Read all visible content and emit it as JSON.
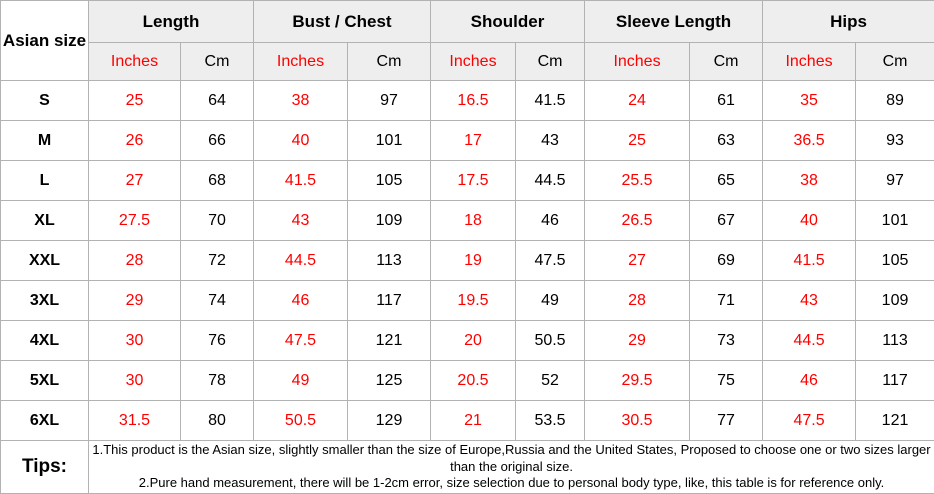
{
  "chart_data": {
    "type": "table",
    "corner_header": "Asian size",
    "column_groups": [
      "Length",
      "Bust / Chest",
      "Shoulder",
      "Sleeve Length",
      "Hips"
    ],
    "unit_columns": [
      "Inches",
      "Cm"
    ],
    "row_labels": [
      "S",
      "M",
      "L",
      "XL",
      "XXL",
      "3XL",
      "4XL",
      "5XL",
      "6XL"
    ],
    "rows": [
      [
        25,
        64,
        38,
        97,
        16.5,
        41.5,
        24,
        61,
        35,
        89
      ],
      [
        26,
        66,
        40,
        101,
        17,
        43,
        25,
        63,
        36.5,
        93
      ],
      [
        27,
        68,
        41.5,
        105,
        17.5,
        44.5,
        25.5,
        65,
        38,
        97
      ],
      [
        27.5,
        70,
        43,
        109,
        18,
        46,
        26.5,
        67,
        40,
        101
      ],
      [
        28,
        72,
        44.5,
        113,
        19,
        47.5,
        27,
        69,
        41.5,
        105
      ],
      [
        29,
        74,
        46,
        117,
        19.5,
        49,
        28,
        71,
        43,
        109
      ],
      [
        30,
        76,
        47.5,
        121,
        20,
        50.5,
        29,
        73,
        44.5,
        113
      ],
      [
        30,
        78,
        49,
        125,
        20.5,
        52,
        29.5,
        75,
        46,
        117
      ],
      [
        31.5,
        80,
        50.5,
        129,
        21,
        53.5,
        30.5,
        77,
        47.5,
        121
      ]
    ]
  },
  "tips": {
    "label": "Tips:",
    "lines": [
      "1.This product is the Asian size, slightly smaller than the size of Europe,Russia and the United States, Proposed to choose one or two sizes larger than the original size.",
      "2.Pure hand measurement, there will be 1-2cm error, size selection due to personal body type, like, this table is for reference only."
    ]
  },
  "colors": {
    "accent_red": "#ff0000",
    "header_bg": "#eeeeee",
    "border": "#b2b2b2",
    "text": "#000000"
  }
}
